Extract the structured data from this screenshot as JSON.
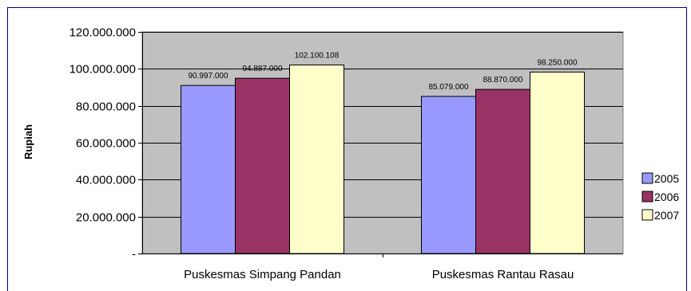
{
  "chart_data": {
    "type": "bar",
    "title": "",
    "xlabel": "",
    "ylabel": "Rupiah",
    "ylim": [
      0,
      120000000
    ],
    "yticks": [
      0,
      20000000,
      40000000,
      60000000,
      80000000,
      100000000,
      120000000
    ],
    "ytick_labels": [
      "-",
      "20.000.000",
      "40.000.000",
      "60.000.000",
      "80.000.000",
      "100.000.000",
      "120.000.000"
    ],
    "categories": [
      "Puskesmas Simpang Pandan",
      "Puskesmas Rantau Rasau"
    ],
    "series": [
      {
        "name": "2005",
        "color": "#9999FF",
        "values": [
          90997000,
          85079000
        ],
        "labels": [
          "90.997.000",
          "85.079.000"
        ]
      },
      {
        "name": "2006",
        "color": "#993366",
        "values": [
          94887000,
          88870000
        ],
        "labels": [
          "94.887.000",
          "88.870.000"
        ]
      },
      {
        "name": "2007",
        "color": "#FFFFCC",
        "values": [
          102100108,
          98250000
        ],
        "labels": [
          "102.100.108",
          "98.250.000"
        ]
      }
    ],
    "grid": true,
    "legend": "right",
    "plot_background": "#C0C0C0",
    "frame_border_color": "#000080"
  }
}
